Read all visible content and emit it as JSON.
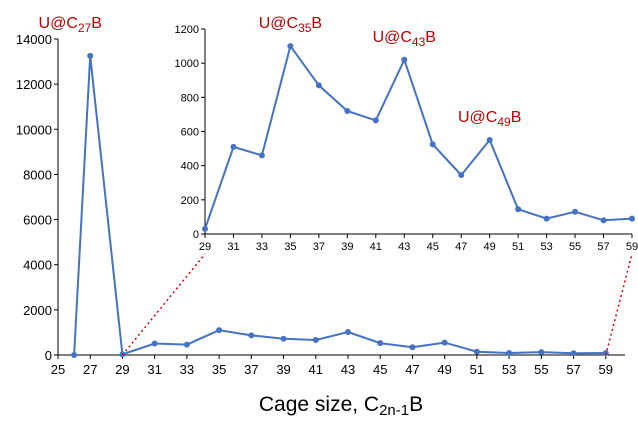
{
  "chart_data": [
    {
      "id": "main",
      "type": "line",
      "xlabel": {
        "text": "Cage size, C",
        "sub": "2n-1",
        "suffix": "B"
      },
      "xlim": [
        25,
        61
      ],
      "ylim": [
        0,
        14000
      ],
      "xticks": [
        25,
        27,
        29,
        31,
        33,
        35,
        37,
        39,
        41,
        43,
        45,
        47,
        49,
        51,
        53,
        55,
        57,
        59
      ],
      "yticks": [
        0,
        2000,
        4000,
        6000,
        8000,
        10000,
        12000,
        14000
      ],
      "grid": false,
      "series": [
        {
          "color": "#4472c4",
          "points": [
            [
              26,
              0
            ],
            [
              27,
              13250
            ],
            [
              29,
              30
            ],
            [
              31,
              510
            ],
            [
              33,
              460
            ],
            [
              35,
              1100
            ],
            [
              37,
              870
            ],
            [
              39,
              720
            ],
            [
              41,
              665
            ],
            [
              43,
              1020
            ],
            [
              45,
              525
            ],
            [
              47,
              345
            ],
            [
              49,
              550
            ],
            [
              51,
              145
            ],
            [
              53,
              90
            ],
            [
              55,
              130
            ],
            [
              57,
              80
            ],
            [
              59,
              90
            ]
          ]
        }
      ],
      "annotations": [
        {
          "x": 27,
          "y": 13250,
          "text": "U@C",
          "sub": "27",
          "suffix": "B"
        }
      ]
    },
    {
      "id": "inset",
      "type": "line",
      "xlim": [
        29,
        59
      ],
      "ylim": [
        0,
        1200
      ],
      "xticks": [
        29,
        31,
        33,
        35,
        37,
        39,
        41,
        43,
        45,
        47,
        49,
        51,
        53,
        55,
        57,
        59
      ],
      "yticks": [
        0,
        200,
        400,
        600,
        800,
        1000,
        1200
      ],
      "grid": false,
      "series": [
        {
          "color": "#4472c4",
          "points": [
            [
              29,
              30
            ],
            [
              31,
              510
            ],
            [
              33,
              460
            ],
            [
              35,
              1100
            ],
            [
              37,
              870
            ],
            [
              39,
              720
            ],
            [
              41,
              665
            ],
            [
              43,
              1020
            ],
            [
              45,
              525
            ],
            [
              47,
              345
            ],
            [
              49,
              550
            ],
            [
              51,
              145
            ],
            [
              53,
              90
            ],
            [
              55,
              130
            ],
            [
              57,
              80
            ],
            [
              59,
              90
            ]
          ]
        }
      ],
      "annotations": [
        {
          "x": 35,
          "y": 1100,
          "text": "U@C",
          "sub": "35",
          "suffix": "B"
        },
        {
          "x": 43,
          "y": 1020,
          "text": "U@C",
          "sub": "43",
          "suffix": "B"
        },
        {
          "x": 49,
          "y": 550,
          "text": "U@C",
          "sub": "49",
          "suffix": "B"
        }
      ]
    }
  ],
  "colors": {
    "series": "#4472c4",
    "annotation": "#c00000",
    "connector": "#e00000",
    "axis": "#000000"
  }
}
